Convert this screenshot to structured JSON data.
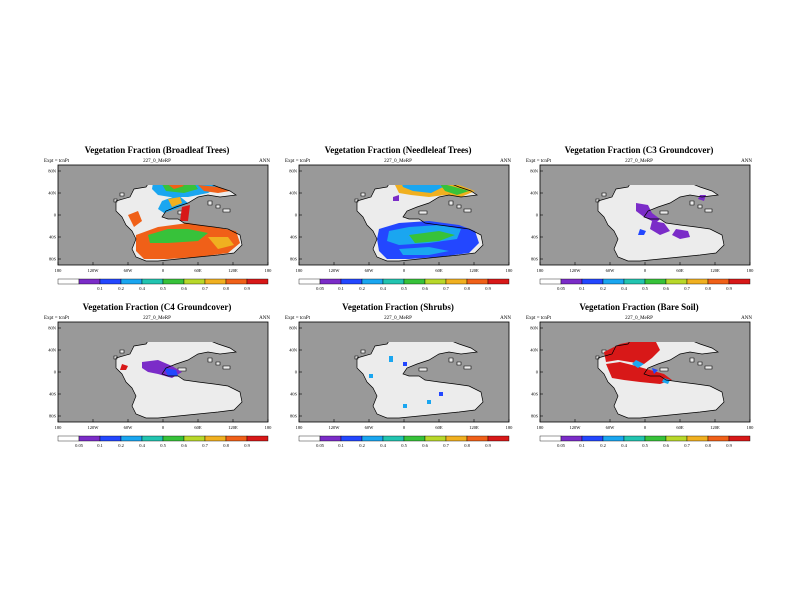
{
  "page": {
    "background": "#ffffff"
  },
  "colors": {
    "ocean": "#999999",
    "land": "#ececec",
    "coast": "#000000"
  },
  "chart_data": [
    {
      "type": "heatmap",
      "title": "Vegetation Fraction (Broadleaf Trees)",
      "expt": "Expt = tcnPt",
      "run": "227_0_MeRP",
      "season": "ANN",
      "x_ticks": [
        "180",
        "120W",
        "60W",
        "0",
        "60E",
        "120E",
        "180"
      ],
      "y_ticks": [
        "80N",
        "40N",
        "0",
        "40S",
        "80S"
      ],
      "colorbar_ticks": [
        "",
        "0.1",
        "0.2",
        "0.4",
        "0.5",
        "0.6",
        "0.7",
        "0.8",
        "0.9"
      ],
      "colorbar_colors": [
        "#ffffff",
        "#7b2cc8",
        "#2347ff",
        "#1aa6f0",
        "#22c4b0",
        "#37c23a",
        "#b8d82a",
        "#f0b020",
        "#f06018",
        "#d81818"
      ],
      "regions": [
        {
          "name": "north high latitudes",
          "value": 0.55
        },
        {
          "name": "tropics",
          "value": 0.85
        },
        {
          "name": "south mid latitudes",
          "value": 0.8
        }
      ]
    },
    {
      "type": "heatmap",
      "title": "Vegetation Fraction (Needleleaf Trees)",
      "expt": "Expt = tcnPt",
      "run": "227_0_MeRP",
      "season": "ANN",
      "x_ticks": [
        "180",
        "120W",
        "60W",
        "0",
        "60E",
        "120E",
        "180"
      ],
      "y_ticks": [
        "80N",
        "40N",
        "0",
        "40S",
        "80S"
      ],
      "colorbar_ticks": [
        "0.05",
        "0.1",
        "0.2",
        "0.4",
        "0.5",
        "0.6",
        "0.7",
        "0.8",
        "0.9"
      ],
      "colorbar_colors": [
        "#ffffff",
        "#7b2cc8",
        "#2347ff",
        "#1aa6f0",
        "#22c4b0",
        "#37c23a",
        "#b8d82a",
        "#f0b020",
        "#f06018",
        "#d81818"
      ],
      "regions": [
        {
          "name": "north high latitudes",
          "value": 0.7
        },
        {
          "name": "south mid latitudes",
          "value": 0.5
        }
      ]
    },
    {
      "type": "heatmap",
      "title": "Vegetation Fraction (C3 Groundcover)",
      "expt": "Expt = tcnPt",
      "run": "227_0_MeRP",
      "season": "ANN",
      "x_ticks": [
        "180",
        "120W",
        "60W",
        "0",
        "60E",
        "120E",
        "180"
      ],
      "y_ticks": [
        "80N",
        "40N",
        "0",
        "40S",
        "80S"
      ],
      "colorbar_ticks": [
        "0.05",
        "0.1",
        "0.2",
        "0.4",
        "0.5",
        "0.6",
        "0.7",
        "0.8",
        "0.9"
      ],
      "colorbar_colors": [
        "#ffffff",
        "#7b2cc8",
        "#2347ff",
        "#1aa6f0",
        "#22c4b0",
        "#37c23a",
        "#b8d82a",
        "#f0b020",
        "#f06018",
        "#d81818"
      ],
      "regions": [
        {
          "name": "central scattered",
          "value": 0.1
        }
      ]
    },
    {
      "type": "heatmap",
      "title": "Vegetation Fraction (C4 Groundcover)",
      "expt": "Expt = tcnPt",
      "run": "227_0_MeRP",
      "season": "ANN",
      "x_ticks": [
        "180",
        "120W",
        "60W",
        "0",
        "60E",
        "120E",
        "180"
      ],
      "y_ticks": [
        "80N",
        "40N",
        "0",
        "40S",
        "80S"
      ],
      "colorbar_ticks": [
        "0.05",
        "0.1",
        "0.2",
        "0.4",
        "0.5",
        "0.6",
        "0.7",
        "0.8",
        "0.9"
      ],
      "colorbar_colors": [
        "#ffffff",
        "#7b2cc8",
        "#2347ff",
        "#1aa6f0",
        "#22c4b0",
        "#37c23a",
        "#b8d82a",
        "#f0b020",
        "#f06018",
        "#d81818"
      ],
      "regions": [
        {
          "name": "equatorial",
          "value": 0.1
        }
      ]
    },
    {
      "type": "heatmap",
      "title": "Vegetation Fraction (Shrubs)",
      "expt": "Expt = tcnPt",
      "run": "227_0_MeRP",
      "season": "ANN",
      "x_ticks": [
        "180",
        "120W",
        "60W",
        "0",
        "60E",
        "120E",
        "180"
      ],
      "y_ticks": [
        "80N",
        "40N",
        "0",
        "40S",
        "80S"
      ],
      "colorbar_ticks": [
        "0.05",
        "0.1",
        "0.2",
        "0.4",
        "0.5",
        "0.6",
        "0.7",
        "0.8",
        "0.9"
      ],
      "colorbar_colors": [
        "#ffffff",
        "#7b2cc8",
        "#2347ff",
        "#1aa6f0",
        "#22c4b0",
        "#37c23a",
        "#b8d82a",
        "#f0b020",
        "#f06018",
        "#d81818"
      ],
      "regions": [
        {
          "name": "scattered",
          "value": 0.3
        }
      ]
    },
    {
      "type": "heatmap",
      "title": "Vegetation Fraction (Bare Soil)",
      "expt": "Expt = tcnPt",
      "run": "227_0_MeRP",
      "season": "ANN",
      "x_ticks": [
        "180",
        "120W",
        "60W",
        "0",
        "60E",
        "120E",
        "180"
      ],
      "y_ticks": [
        "80N",
        "40N",
        "0",
        "40S",
        "80S"
      ],
      "colorbar_ticks": [
        "0.05",
        "0.1",
        "0.2",
        "0.4",
        "0.5",
        "0.6",
        "0.7",
        "0.8",
        "0.9"
      ],
      "colorbar_colors": [
        "#ffffff",
        "#7b2cc8",
        "#2347ff",
        "#1aa6f0",
        "#22c4b0",
        "#37c23a",
        "#b8d82a",
        "#f0b020",
        "#f06018",
        "#d81818"
      ],
      "regions": [
        {
          "name": "west continent",
          "value": 0.95
        }
      ]
    }
  ]
}
